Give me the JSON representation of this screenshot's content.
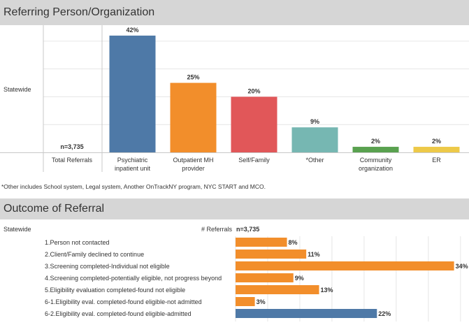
{
  "section1": {
    "title": "Referring Person/Organization",
    "row_label": "Statewide",
    "footnote": "*Other includes School system, Legal system, Another OnTrackNY program, NYC START and MCO."
  },
  "section2": {
    "title": "Outcome of Referral",
    "row_label": "Statewide",
    "referrals_label": "# Referrals",
    "referrals_value": "n=3,735"
  },
  "colors": {
    "blue": "#4e79a7",
    "orange": "#f28e2b",
    "red": "#e15759",
    "teal": "#76b7b2",
    "green": "#59a14f",
    "yellow": "#edc948",
    "grid": "#e6e6e6",
    "divider": "#c8c8c8"
  },
  "chart_data": [
    {
      "type": "bar",
      "title": "Referring Person/Organization",
      "row_label": "Statewide",
      "ylim": [
        0,
        45
      ],
      "summary_column": {
        "label": "Total Referrals",
        "value_label": "n=3,735"
      },
      "categories": [
        [
          "Psychiatric",
          "inpatient unit"
        ],
        [
          "Outpatient MH",
          "provider"
        ],
        [
          "Self/Family"
        ],
        [
          "*Other"
        ],
        [
          "Community",
          "organization"
        ],
        [
          "ER"
        ]
      ],
      "values": [
        42,
        25,
        20,
        9,
        2,
        2
      ],
      "value_labels": [
        "42%",
        "25%",
        "20%",
        "9%",
        "2%",
        "2%"
      ],
      "bar_colors": [
        "#4e79a7",
        "#f28e2b",
        "#e15759",
        "#76b7b2",
        "#59a14f",
        "#edc948"
      ],
      "grid": true
    },
    {
      "type": "bar",
      "orientation": "horizontal",
      "title": "Outcome of Referral",
      "row_label": "Statewide",
      "xlim": [
        0,
        36
      ],
      "categories": [
        "1.Person not contacted",
        "2.Client/Family declined to continue",
        "3.Screening completed-Individual not eligible",
        "4.Screening completed-potentially eligible, not progress beyond",
        "5.Eligibility evaluation completed-found not eligible",
        "6-1.Eligibility eval. completed-found eligible-not admitted",
        "6-2.Eligibility eval. completed-found eligible-admitted"
      ],
      "values": [
        8,
        11,
        34,
        9,
        13,
        3,
        22
      ],
      "value_labels": [
        "8%",
        "11%",
        "34%",
        "9%",
        "13%",
        "3%",
        "22%"
      ],
      "bar_colors": [
        "#f28e2b",
        "#f28e2b",
        "#f28e2b",
        "#f28e2b",
        "#f28e2b",
        "#f28e2b",
        "#4e79a7"
      ],
      "grid": true
    }
  ]
}
